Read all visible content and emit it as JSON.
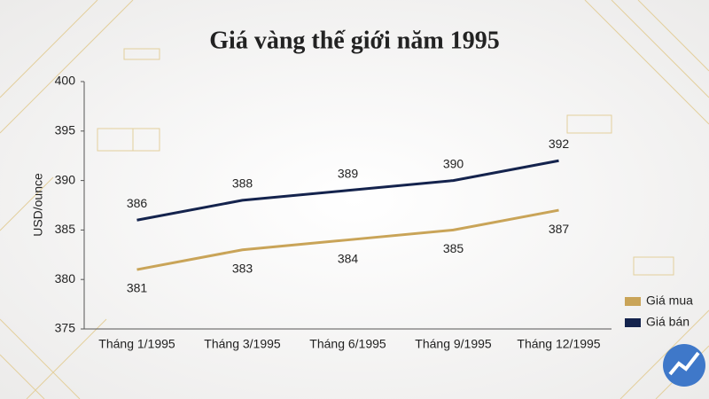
{
  "chart_data": {
    "type": "line",
    "title": "Giá vàng thế giới năm 1995",
    "y_label": "USD/ounce",
    "categories": [
      "Tháng 1/1995",
      "Tháng 3/1995",
      "Tháng 6/1995",
      "Tháng 9/1995",
      "Tháng 12/1995"
    ],
    "series": [
      {
        "name": "Giá mua",
        "color": "#c9a458",
        "values": [
          381,
          383,
          384,
          385,
          387
        ]
      },
      {
        "name": "Giá bán",
        "color": "#14234d",
        "values": [
          386,
          388,
          389,
          390,
          392
        ]
      }
    ],
    "ylim": [
      375,
      400
    ],
    "yticks": [
      375,
      380,
      385,
      390,
      395,
      400
    ],
    "grid": false,
    "legend": "right"
  }
}
